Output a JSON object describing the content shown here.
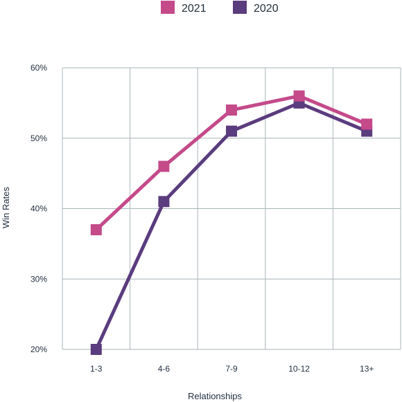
{
  "chart_data": {
    "type": "line",
    "xlabel": "Relationships",
    "ylabel": "Win Rates",
    "categories": [
      "1-3",
      "4-6",
      "7-9",
      "10-12",
      "13+"
    ],
    "ylim": [
      20,
      60
    ],
    "yticks": [
      20,
      30,
      40,
      50,
      60
    ],
    "ytick_labels": [
      "20%",
      "30%",
      "40%",
      "50%",
      "60%"
    ],
    "grid": true,
    "legend_position": "top-center",
    "series": [
      {
        "name": "2021",
        "color": "#c44a8a",
        "values": [
          37,
          46,
          54,
          56,
          52
        ]
      },
      {
        "name": "2020",
        "color": "#5b3c7e",
        "values": [
          20,
          41,
          51,
          55,
          51
        ]
      }
    ]
  }
}
